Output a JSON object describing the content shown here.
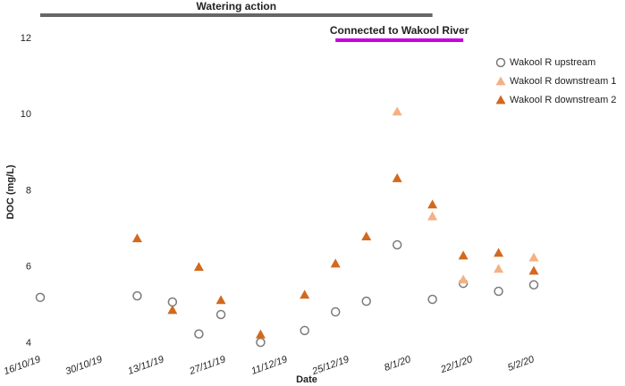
{
  "chart_data": {
    "type": "scatter",
    "ylabel": "DOC (mg/L)",
    "xlabel": "Date",
    "ylim": [
      4,
      12
    ],
    "yticks": [
      4,
      6,
      8,
      10,
      12
    ],
    "xlim": [
      "16/10/19",
      "5/2/20"
    ],
    "xticks": [
      "16/10/19",
      "30/10/19",
      "13/11/19",
      "27/11/19",
      "11/12/19",
      "25/12/19",
      "8/1/20",
      "22/1/20",
      "5/2/20"
    ],
    "annotations": [
      {
        "text": "Watering action",
        "start": "16/10/19",
        "end": "13/1/20",
        "color": "#666666"
      },
      {
        "text": "Connected to Wakool River",
        "start": "22/12/19",
        "end": "20/1/20",
        "color": "#c800e0"
      }
    ],
    "series": [
      {
        "name": "Wakool R upstream",
        "color": "#7a7a7a",
        "marker": "circle",
        "x": [
          "16/10/19",
          "7/11/19",
          "15/11/19",
          "21/11/19",
          "26/11/19",
          "5/12/19",
          "15/12/19",
          "22/12/19",
          "29/12/19",
          "5/1/20",
          "13/1/20",
          "20/1/20",
          "28/1/20",
          "5/2/20"
        ],
        "values": [
          5.2,
          5.24,
          5.08,
          4.24,
          4.75,
          4.02,
          4.33,
          4.82,
          5.1,
          6.58,
          5.15,
          5.57,
          5.36,
          5.53
        ]
      },
      {
        "name": "Wakool R downstream 1",
        "color": "#f4b183",
        "marker": "triangle",
        "x": [
          "5/1/20",
          "13/1/20",
          "20/1/20",
          "28/1/20",
          "5/2/20"
        ],
        "values": [
          10.08,
          7.33,
          5.67,
          5.95,
          6.25
        ]
      },
      {
        "name": "Wakool R downstream 2",
        "color": "#d2691e",
        "marker": "triangle",
        "x": [
          "7/11/19",
          "15/11/19",
          "21/11/19",
          "26/11/19",
          "5/12/19",
          "15/12/19",
          "22/12/19",
          "29/12/19",
          "5/1/20",
          "13/1/20",
          "20/1/20",
          "28/1/20",
          "5/2/20"
        ],
        "values": [
          6.75,
          4.87,
          6.0,
          5.13,
          4.23,
          5.27,
          6.09,
          6.8,
          8.33,
          7.64,
          6.3,
          6.37,
          5.9
        ]
      }
    ]
  }
}
